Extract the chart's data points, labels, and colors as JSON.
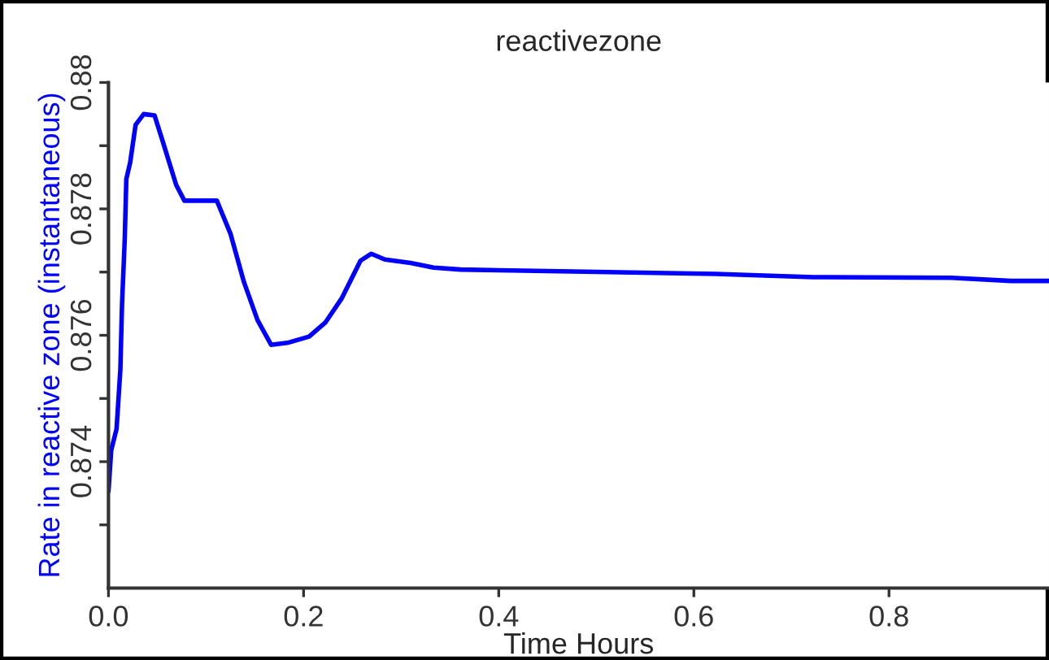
{
  "chart_data": {
    "type": "line",
    "title": "reactivezone",
    "xlabel": "Time Hours",
    "ylabel": "Rate in reactive zone (instantaneous)",
    "x": [
      0,
      0.0028,
      0.0083,
      0.0122,
      0.0139,
      0.0167,
      0.0183,
      0.0222,
      0.0278,
      0.0361,
      0.0472,
      0.0556,
      0.0694,
      0.0778,
      0.1111,
      0.125,
      0.1389,
      0.1528,
      0.1667,
      0.1833,
      0.2056,
      0.2222,
      0.2389,
      0.2583,
      0.2694,
      0.2833,
      0.3111,
      0.3333,
      0.3611,
      0.4,
      0.6222,
      0.7222,
      0.8639,
      0.925,
      0.9639
    ],
    "series": [
      {
        "color": "#0000ff",
        "values": [
          0.87353,
          0.87418,
          0.87452,
          0.87546,
          0.87649,
          0.87753,
          0.87847,
          0.87873,
          0.87933,
          0.8795,
          0.87948,
          0.87907,
          0.87838,
          0.87813,
          0.87813,
          0.87761,
          0.87684,
          0.87624,
          0.87585,
          0.87588,
          0.87598,
          0.8762,
          0.87658,
          0.87718,
          0.87729,
          0.8772,
          0.87714,
          0.87707,
          0.87704,
          0.87703,
          0.87697,
          0.87692,
          0.87691,
          0.87686,
          0.87686
        ]
      }
    ],
    "xlim": [
      0,
      0.964
    ],
    "ylim": [
      0.872,
      0.88
    ],
    "xticks": [
      {
        "value": 0,
        "label": "0.0"
      },
      0.2,
      0.4,
      0.6,
      0.8
    ],
    "yticks": [
      {
        "value": 0.873,
        "label": null
      },
      0.874,
      {
        "value": 0.875,
        "label": null
      },
      0.876,
      {
        "value": 0.877,
        "label": null
      },
      0.878,
      {
        "value": 0.879,
        "label": null
      },
      0.88
    ],
    "grid": false,
    "legend": false,
    "marker": "none",
    "line_style": "solid"
  }
}
